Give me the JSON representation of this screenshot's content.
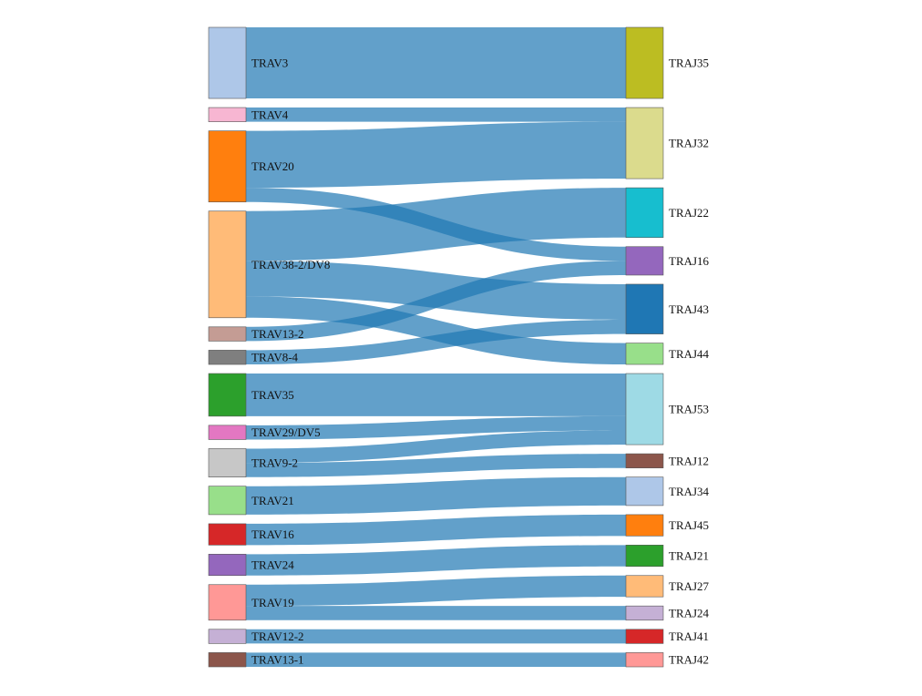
{
  "chart_data": {
    "type": "sankey",
    "link_color": "#1f77b4",
    "sources": [
      {
        "id": "TRAV3",
        "label": "TRAV3",
        "color": "#aec7e8"
      },
      {
        "id": "TRAV4",
        "label": "TRAV4",
        "color": "#f7b6d2"
      },
      {
        "id": "TRAV20",
        "label": "TRAV20",
        "color": "#ff7f0e"
      },
      {
        "id": "TRAV38-2/DV8",
        "label": "TRAV38-2/DV8",
        "color": "#ffbb78"
      },
      {
        "id": "TRAV13-2",
        "label": "TRAV13-2",
        "color": "#c49c94"
      },
      {
        "id": "TRAV8-4",
        "label": "TRAV8-4",
        "color": "#7f7f7f"
      },
      {
        "id": "TRAV35",
        "label": "TRAV35",
        "color": "#2ca02c"
      },
      {
        "id": "TRAV29/DV5",
        "label": "TRAV29/DV5",
        "color": "#e377c2"
      },
      {
        "id": "TRAV9-2",
        "label": "TRAV9-2",
        "color": "#c7c7c7"
      },
      {
        "id": "TRAV21",
        "label": "TRAV21",
        "color": "#98df8a"
      },
      {
        "id": "TRAV16",
        "label": "TRAV16",
        "color": "#d62728"
      },
      {
        "id": "TRAV24",
        "label": "TRAV24",
        "color": "#9467bd"
      },
      {
        "id": "TRAV19",
        "label": "TRAV19",
        "color": "#ff9896"
      },
      {
        "id": "TRAV12-2",
        "label": "TRAV12-2",
        "color": "#c5b0d5"
      },
      {
        "id": "TRAV13-1",
        "label": "TRAV13-1",
        "color": "#8c564b"
      }
    ],
    "targets": [
      {
        "id": "TRAJ35",
        "label": "TRAJ35",
        "color": "#bcbd22"
      },
      {
        "id": "TRAJ32",
        "label": "TRAJ32",
        "color": "#dbdb8d"
      },
      {
        "id": "TRAJ22",
        "label": "TRAJ22",
        "color": "#17becf"
      },
      {
        "id": "TRAJ16",
        "label": "TRAJ16",
        "color": "#9467bd"
      },
      {
        "id": "TRAJ43",
        "label": "TRAJ43",
        "color": "#1f77b4"
      },
      {
        "id": "TRAJ44",
        "label": "TRAJ44",
        "color": "#98df8a"
      },
      {
        "id": "TRAJ53",
        "label": "TRAJ53",
        "color": "#9edae5"
      },
      {
        "id": "TRAJ12",
        "label": "TRAJ12",
        "color": "#8c564b"
      },
      {
        "id": "TRAJ34",
        "label": "TRAJ34",
        "color": "#aec7e8"
      },
      {
        "id": "TRAJ45",
        "label": "TRAJ45",
        "color": "#ff7f0e"
      },
      {
        "id": "TRAJ21",
        "label": "TRAJ21",
        "color": "#2ca02c"
      },
      {
        "id": "TRAJ27",
        "label": "TRAJ27",
        "color": "#ffbb78"
      },
      {
        "id": "TRAJ24",
        "label": "TRAJ24",
        "color": "#c5b0d5"
      },
      {
        "id": "TRAJ41",
        "label": "TRAJ41",
        "color": "#d62728"
      },
      {
        "id": "TRAJ42",
        "label": "TRAJ42",
        "color": "#ff9896"
      }
    ],
    "links": [
      {
        "source": "TRAV3",
        "target": "TRAJ35",
        "value": 5
      },
      {
        "source": "TRAV4",
        "target": "TRAJ32",
        "value": 1
      },
      {
        "source": "TRAV20",
        "target": "TRAJ32",
        "value": 4
      },
      {
        "source": "TRAV20",
        "target": "TRAJ16",
        "value": 1
      },
      {
        "source": "TRAV38-2/DV8",
        "target": "TRAJ22",
        "value": 3.5
      },
      {
        "source": "TRAV38-2/DV8",
        "target": "TRAJ43",
        "value": 2.5
      },
      {
        "source": "TRAV38-2/DV8",
        "target": "TRAJ44",
        "value": 1.5
      },
      {
        "source": "TRAV13-2",
        "target": "TRAJ16",
        "value": 1
      },
      {
        "source": "TRAV8-4",
        "target": "TRAJ43",
        "value": 1
      },
      {
        "source": "TRAV35",
        "target": "TRAJ53",
        "value": 3
      },
      {
        "source": "TRAV29/DV5",
        "target": "TRAJ53",
        "value": 1
      },
      {
        "source": "TRAV9-2",
        "target": "TRAJ53",
        "value": 1
      },
      {
        "source": "TRAV9-2",
        "target": "TRAJ12",
        "value": 1
      },
      {
        "source": "TRAV21",
        "target": "TRAJ34",
        "value": 2
      },
      {
        "source": "TRAV16",
        "target": "TRAJ45",
        "value": 1.5
      },
      {
        "source": "TRAV24",
        "target": "TRAJ21",
        "value": 1.5
      },
      {
        "source": "TRAV19",
        "target": "TRAJ27",
        "value": 1.5
      },
      {
        "source": "TRAV19",
        "target": "TRAJ24",
        "value": 1
      },
      {
        "source": "TRAV12-2",
        "target": "TRAJ41",
        "value": 1
      },
      {
        "source": "TRAV13-1",
        "target": "TRAJ42",
        "value": 1
      }
    ]
  }
}
